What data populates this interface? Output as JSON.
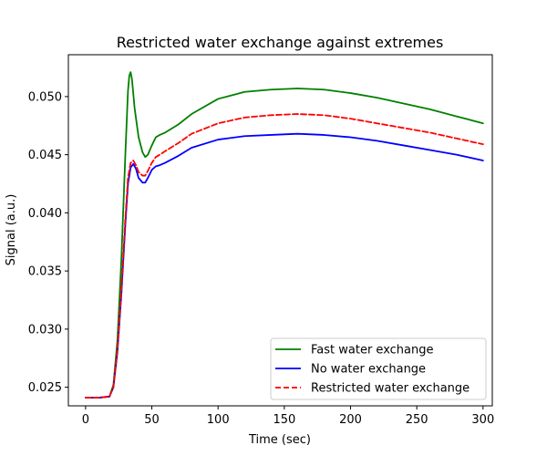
{
  "chart_data": {
    "type": "line",
    "title": "Restricted water exchange against extremes",
    "xlabel": "Time (sec)",
    "ylabel": "Signal (a.u.)",
    "xlim": [
      -13,
      307
    ],
    "ylim": [
      0.0234,
      0.0536
    ],
    "xticks": [
      0,
      50,
      100,
      150,
      200,
      250,
      300
    ],
    "yticks": [
      0.025,
      0.03,
      0.035,
      0.04,
      0.045,
      0.05
    ],
    "ytick_labels": [
      "0.025",
      "0.030",
      "0.035",
      "0.040",
      "0.045",
      "0.050"
    ],
    "grid": false,
    "legend_position": "bottom-right",
    "series": [
      {
        "name": "Fast water exchange",
        "color": "#008000",
        "dash": "solid",
        "x": [
          0,
          10,
          18,
          21,
          24,
          27,
          30,
          32,
          33,
          34,
          35,
          37,
          40,
          43,
          45,
          47,
          50,
          53,
          56,
          60,
          70,
          80,
          100,
          120,
          140,
          160,
          180,
          200,
          220,
          240,
          260,
          280,
          300
        ],
        "y": [
          0.0241,
          0.0241,
          0.0242,
          0.0252,
          0.029,
          0.036,
          0.045,
          0.0505,
          0.0518,
          0.0521,
          0.0515,
          0.049,
          0.0465,
          0.0452,
          0.0448,
          0.045,
          0.0458,
          0.0465,
          0.0467,
          0.0469,
          0.0476,
          0.0485,
          0.0498,
          0.0504,
          0.0506,
          0.0507,
          0.0506,
          0.0503,
          0.0499,
          0.0494,
          0.0489,
          0.0483,
          0.0477
        ]
      },
      {
        "name": "No water exchange",
        "color": "#0000ff",
        "dash": "solid",
        "x": [
          0,
          10,
          18,
          21,
          24,
          27,
          30,
          32,
          34,
          36,
          38,
          40,
          43,
          45,
          47,
          50,
          53,
          56,
          60,
          70,
          80,
          100,
          120,
          140,
          160,
          180,
          200,
          220,
          240,
          260,
          280,
          300
        ],
        "y": [
          0.0241,
          0.0241,
          0.0242,
          0.025,
          0.028,
          0.033,
          0.039,
          0.0425,
          0.0439,
          0.0442,
          0.0438,
          0.043,
          0.0426,
          0.0426,
          0.043,
          0.0437,
          0.044,
          0.0441,
          0.0443,
          0.0449,
          0.0456,
          0.0463,
          0.0466,
          0.0467,
          0.0468,
          0.0467,
          0.0465,
          0.0462,
          0.0458,
          0.0454,
          0.045,
          0.0445
        ]
      },
      {
        "name": "Restricted water exchange",
        "color": "#ff0000",
        "dash": "dashed",
        "x": [
          0,
          10,
          18,
          21,
          24,
          27,
          30,
          32,
          34,
          36,
          38,
          40,
          43,
          45,
          47,
          50,
          53,
          56,
          60,
          70,
          80,
          100,
          120,
          140,
          160,
          180,
          200,
          220,
          240,
          260,
          280,
          300
        ],
        "y": [
          0.0241,
          0.0241,
          0.0242,
          0.025,
          0.0282,
          0.0335,
          0.0395,
          0.043,
          0.0443,
          0.0445,
          0.0441,
          0.0435,
          0.0432,
          0.0432,
          0.0436,
          0.0443,
          0.0448,
          0.045,
          0.0453,
          0.046,
          0.0468,
          0.0477,
          0.0482,
          0.0484,
          0.0485,
          0.0484,
          0.0481,
          0.0477,
          0.0473,
          0.0469,
          0.0464,
          0.0459
        ]
      }
    ]
  }
}
